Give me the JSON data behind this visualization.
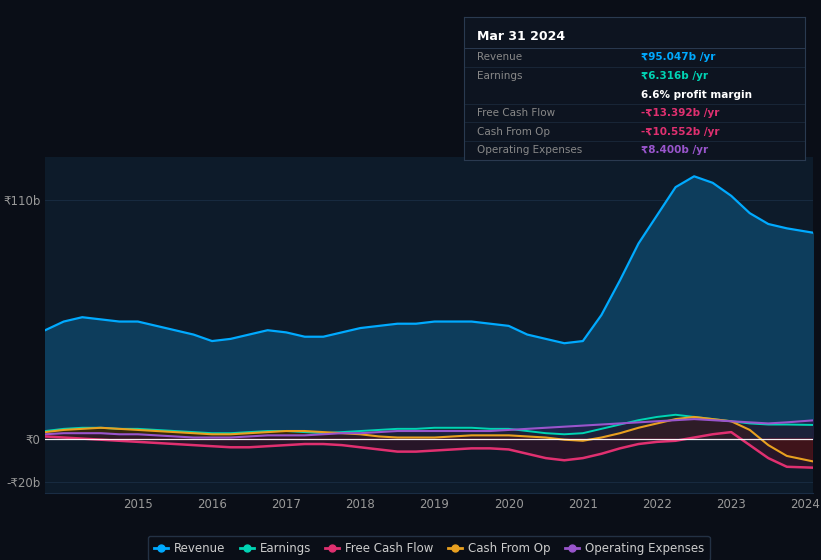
{
  "bg_color": "#0a0e17",
  "plot_bg_color": "#0d1b2a",
  "title": "Mar 31 2024",
  "years": [
    2013.75,
    2014.0,
    2014.25,
    2014.5,
    2014.75,
    2015.0,
    2015.25,
    2015.5,
    2015.75,
    2016.0,
    2016.25,
    2016.5,
    2016.75,
    2017.0,
    2017.25,
    2017.5,
    2017.75,
    2018.0,
    2018.25,
    2018.5,
    2018.75,
    2019.0,
    2019.25,
    2019.5,
    2019.75,
    2020.0,
    2020.25,
    2020.5,
    2020.75,
    2021.0,
    2021.25,
    2021.5,
    2021.75,
    2022.0,
    2022.25,
    2022.5,
    2022.75,
    2023.0,
    2023.25,
    2023.5,
    2023.75,
    2024.1
  ],
  "revenue": [
    50,
    54,
    56,
    55,
    54,
    54,
    52,
    50,
    48,
    45,
    46,
    48,
    50,
    49,
    47,
    47,
    49,
    51,
    52,
    53,
    53,
    54,
    54,
    54,
    53,
    52,
    48,
    46,
    44,
    45,
    57,
    73,
    90,
    103,
    116,
    121,
    118,
    112,
    104,
    99,
    97,
    95
  ],
  "earnings": [
    3.5,
    4.5,
    5,
    5,
    4.5,
    4.5,
    4,
    3.5,
    3,
    2.5,
    2.5,
    3,
    3.5,
    3.5,
    3,
    2.5,
    3,
    3.5,
    4,
    4.5,
    4.5,
    5,
    5,
    5,
    4.5,
    4.5,
    3.5,
    2.5,
    2,
    2.5,
    4.5,
    6.5,
    8.5,
    10,
    11,
    10,
    9,
    8,
    7,
    6.5,
    6.5,
    6.3
  ],
  "free_cash_flow": [
    1,
    0.5,
    0,
    -0.5,
    -1,
    -1.5,
    -2,
    -2.5,
    -3,
    -3.5,
    -4,
    -4,
    -3.5,
    -3,
    -2.5,
    -2.5,
    -3,
    -4,
    -5,
    -6,
    -6,
    -5.5,
    -5,
    -4.5,
    -4.5,
    -5,
    -7,
    -9,
    -10,
    -9,
    -7,
    -4.5,
    -2.5,
    -1.5,
    -1,
    0.5,
    2,
    3,
    -3,
    -9,
    -13,
    -13.4
  ],
  "cash_from_op": [
    3,
    4,
    4.5,
    5,
    4.5,
    4,
    3.5,
    3,
    2.5,
    2,
    2,
    2.5,
    3,
    3.5,
    3.5,
    3,
    2.5,
    2,
    1,
    0.5,
    0.5,
    0.5,
    1,
    1.5,
    1.5,
    1.5,
    1,
    0.5,
    -0.5,
    -1,
    0.5,
    2.5,
    5,
    7,
    9,
    10,
    9,
    8,
    4,
    -3,
    -8,
    -10.5
  ],
  "operating_expenses": [
    2,
    2.5,
    2.5,
    2.5,
    2,
    2,
    1.5,
    1,
    0.5,
    0.5,
    0.5,
    1,
    1.5,
    1.5,
    1.5,
    2,
    2.5,
    2.5,
    3,
    3.5,
    3.5,
    3.5,
    3.5,
    3.5,
    3.5,
    4,
    4.5,
    5,
    5.5,
    6,
    6.5,
    7,
    7.5,
    8,
    8.5,
    9,
    8.5,
    8,
    7.5,
    7,
    7.5,
    8.4
  ],
  "ylim": [
    -25,
    130
  ],
  "yticks_vals": [
    -20,
    0,
    110
  ],
  "ytick_labels": [
    "-₹20b",
    "₹0",
    "₹110b"
  ],
  "xticks": [
    2015,
    2016,
    2017,
    2018,
    2019,
    2020,
    2021,
    2022,
    2023,
    2024
  ],
  "colors": {
    "revenue_line": "#00aaff",
    "revenue_fill": "#0d3d5c",
    "earnings_line": "#00d4b4",
    "earnings_fill": "#0d3530",
    "free_cash_flow_line": "#e03070",
    "cash_from_op_line": "#e8a020",
    "cash_from_op_fill_pos": "#3a2808",
    "cash_from_op_fill_neg": "#4a1a08",
    "operating_expenses_line": "#9955cc",
    "operating_expenses_fill": "#2a1040",
    "grid_line": "#1a2d44",
    "zero_line": "#ffffff",
    "bottom_line": "#1a2d44"
  },
  "tooltip": {
    "title": "Mar 31 2024",
    "bg": "#0d1420",
    "border": "#2a3a50",
    "rows": [
      {
        "label": "Revenue",
        "value": "₹95.047b /yr",
        "label_color": "#888888",
        "value_color": "#00aaff",
        "has_separator": true
      },
      {
        "label": "Earnings",
        "value": "₹6.316b /yr",
        "label_color": "#888888",
        "value_color": "#00d4b4",
        "has_separator": false
      },
      {
        "label": "",
        "value": "6.6% profit margin",
        "label_color": "#888888",
        "value_color": "#ffffff",
        "has_separator": true
      },
      {
        "label": "Free Cash Flow",
        "value": "-₹13.392b /yr",
        "label_color": "#888888",
        "value_color": "#e03070",
        "has_separator": true
      },
      {
        "label": "Cash From Op",
        "value": "-₹10.552b /yr",
        "label_color": "#888888",
        "value_color": "#e03070",
        "has_separator": true
      },
      {
        "label": "Operating Expenses",
        "value": "₹8.400b /yr",
        "label_color": "#888888",
        "value_color": "#9955cc",
        "has_separator": true
      }
    ]
  },
  "legend": [
    {
      "label": "Revenue",
      "color": "#00aaff"
    },
    {
      "label": "Earnings",
      "color": "#00d4b4"
    },
    {
      "label": "Free Cash Flow",
      "color": "#e03070"
    },
    {
      "label": "Cash From Op",
      "color": "#e8a020"
    },
    {
      "label": "Operating Expenses",
      "color": "#9955cc"
    }
  ]
}
